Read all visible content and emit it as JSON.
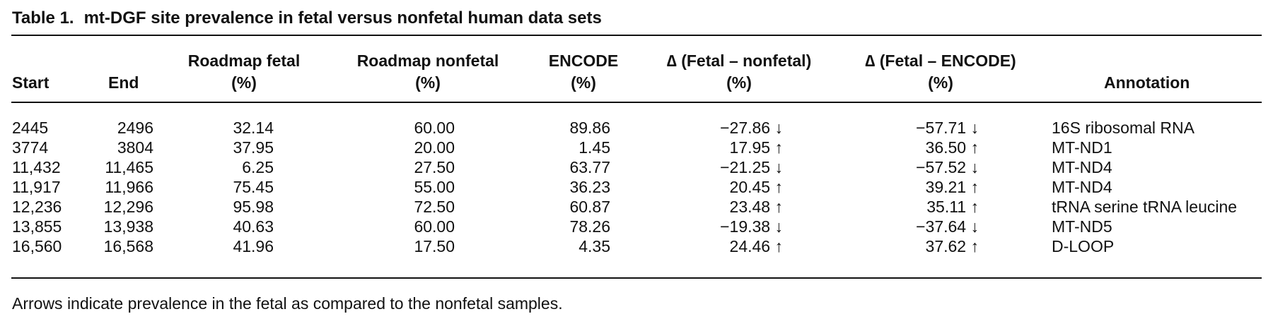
{
  "table": {
    "label": "Table 1.",
    "title": "mt-DGF site prevalence in fetal versus nonfetal human data sets",
    "headers": {
      "start": "Start",
      "end": "End",
      "roadmap_fetal": [
        "Roadmap fetal",
        "(%)"
      ],
      "roadmap_nonfetal": [
        "Roadmap nonfetal",
        "(%)"
      ],
      "encode": [
        "ENCODE",
        "(%)"
      ],
      "delta_fetal_nonfetal": [
        "∆ (Fetal – nonfetal)",
        "(%)"
      ],
      "delta_fetal_encode": [
        "∆ (Fetal – ENCODE)",
        "(%)"
      ],
      "annotation": "Annotation"
    },
    "rows": [
      {
        "start": "2445",
        "end": "2496",
        "roadmap_fetal": "32.14",
        "roadmap_nonfetal": "60.00",
        "encode": "89.86",
        "delta_fn": "−27.86 ↓",
        "delta_fe": "−57.71 ↓",
        "annotation": "16S ribosomal RNA"
      },
      {
        "start": "3774",
        "end": "3804",
        "roadmap_fetal": "37.95",
        "roadmap_nonfetal": "20.00",
        "encode": "1.45",
        "delta_fn": "17.95 ↑",
        "delta_fe": "36.50 ↑",
        "annotation": "MT-ND1"
      },
      {
        "start": "11,432",
        "end": "11,465",
        "roadmap_fetal": "6.25",
        "roadmap_nonfetal": "27.50",
        "encode": "63.77",
        "delta_fn": "−21.25 ↓",
        "delta_fe": "−57.52 ↓",
        "annotation": "MT-ND4"
      },
      {
        "start": "11,917",
        "end": "11,966",
        "roadmap_fetal": "75.45",
        "roadmap_nonfetal": "55.00",
        "encode": "36.23",
        "delta_fn": "20.45 ↑",
        "delta_fe": "39.21 ↑",
        "annotation": "MT-ND4"
      },
      {
        "start": "12,236",
        "end": "12,296",
        "roadmap_fetal": "95.98",
        "roadmap_nonfetal": "72.50",
        "encode": "60.87",
        "delta_fn": "23.48 ↑",
        "delta_fe": "35.11 ↑",
        "annotation": "tRNA serine tRNA leucine"
      },
      {
        "start": "13,855",
        "end": "13,938",
        "roadmap_fetal": "40.63",
        "roadmap_nonfetal": "60.00",
        "encode": "78.26",
        "delta_fn": "−19.38 ↓",
        "delta_fe": "−37.64 ↓",
        "annotation": "MT-ND5"
      },
      {
        "start": "16,560",
        "end": "16,568",
        "roadmap_fetal": "41.96",
        "roadmap_nonfetal": "17.50",
        "encode": "4.35",
        "delta_fn": "24.46 ↑",
        "delta_fe": "37.62 ↑",
        "annotation": "D-LOOP"
      }
    ],
    "footnote": "Arrows indicate prevalence in the fetal as compared to the nonfetal samples."
  }
}
